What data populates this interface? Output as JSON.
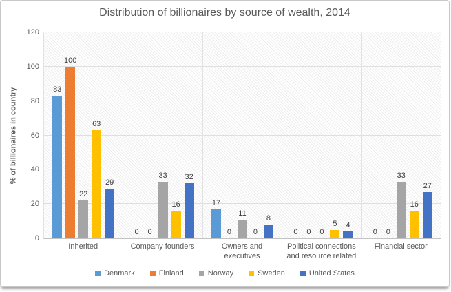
{
  "chart_data": {
    "type": "bar",
    "title": "Distribution of billionaires by source of wealth, 2014",
    "xlabel": "",
    "ylabel": "% of billionaires  in country",
    "ylim": [
      0,
      120
    ],
    "yticks": [
      0,
      20,
      40,
      60,
      80,
      100,
      120
    ],
    "grid": true,
    "legend_position": "bottom",
    "data_labels": true,
    "plot_background": "diagonal-hatch",
    "categories": [
      "Inherited",
      "Company founders",
      "Owners and executives",
      "Political connections and resource related",
      "Financial sector"
    ],
    "series": [
      {
        "name": "Denmark",
        "color": "#5B9BD5",
        "values": [
          83,
          0,
          17,
          0,
          0
        ]
      },
      {
        "name": "Finland",
        "color": "#ED7D31",
        "values": [
          100,
          0,
          0,
          0,
          0
        ]
      },
      {
        "name": "Norway",
        "color": "#A5A5A5",
        "values": [
          22,
          33,
          11,
          0,
          33
        ]
      },
      {
        "name": "Sweden",
        "color": "#FFC000",
        "values": [
          63,
          16,
          0,
          5,
          16
        ]
      },
      {
        "name": "United States",
        "color": "#4472C4",
        "values": [
          29,
          32,
          8,
          4,
          27
        ]
      }
    ],
    "colors": {
      "title_text": "#595959",
      "axis_text": "#595959",
      "data_label_text": "#404040",
      "gridline": "#dfdfdf"
    }
  }
}
